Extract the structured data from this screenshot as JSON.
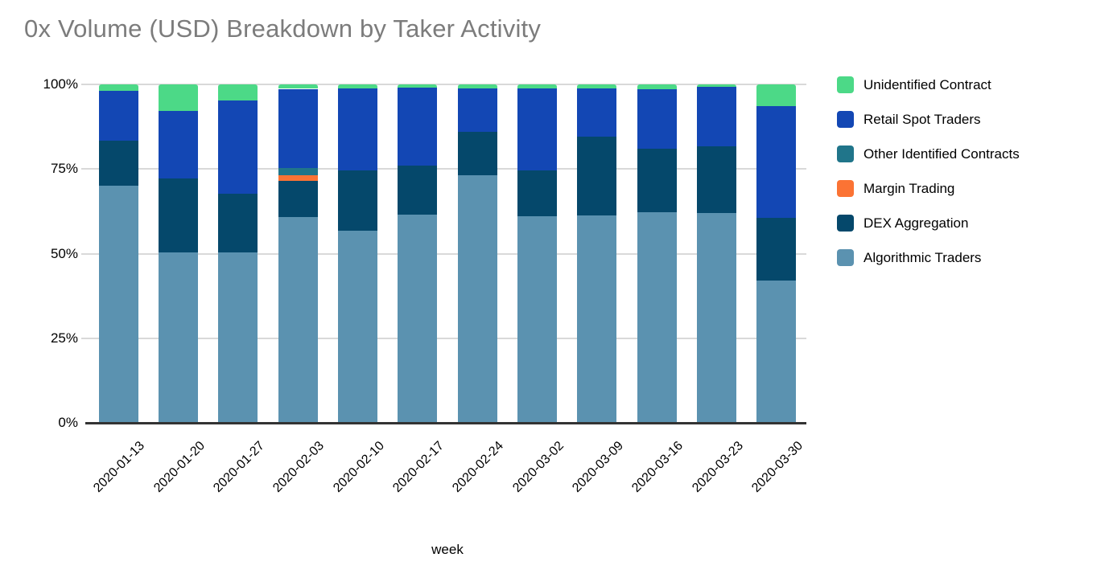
{
  "chart_data": {
    "type": "bar",
    "stacking": "percent",
    "title": "0x Volume (USD) Breakdown by Taker Activity",
    "xlabel": "week",
    "ylabel": "",
    "ylim": [
      0,
      100
    ],
    "y_tick_labels": [
      "0%",
      "25%",
      "50%",
      "75%",
      "100%"
    ],
    "grid": true,
    "legend_position": "right",
    "categories": [
      "2020-01-13",
      "2020-01-20",
      "2020-01-27",
      "2020-02-03",
      "2020-02-10",
      "2020-02-17",
      "2020-02-24",
      "2020-03-02",
      "2020-03-09",
      "2020-03-16",
      "2020-03-23",
      "2020-03-30"
    ],
    "series": [
      {
        "name": "Algorithmic Traders",
        "color": "#5b92b0",
        "values": [
          70.0,
          50.3,
          50.3,
          60.8,
          56.8,
          61.6,
          73.1,
          61.0,
          61.4,
          62.3,
          62.0,
          42.0
        ]
      },
      {
        "name": "DEX Aggregation",
        "color": "#05486b",
        "values": [
          13.4,
          21.8,
          17.5,
          10.6,
          17.8,
          14.3,
          12.8,
          13.7,
          23.2,
          18.7,
          19.8,
          18.6
        ]
      },
      {
        "name": "Margin Trading",
        "color": "#fb7334",
        "values": [
          0,
          0,
          0,
          1.8,
          0,
          0,
          0,
          0,
          0,
          0,
          0,
          0
        ]
      },
      {
        "name": "Other Identified Contracts",
        "color": "#20758a",
        "values": [
          0,
          0,
          0,
          2.0,
          0,
          0,
          0,
          0,
          0,
          0,
          0,
          0
        ]
      },
      {
        "name": "Retail Spot Traders",
        "color": "#1347b4",
        "values": [
          14.7,
          20.0,
          27.5,
          23.5,
          24.3,
          23.1,
          13.0,
          24.0,
          14.1,
          17.5,
          17.5,
          32.9
        ]
      },
      {
        "name": "Unidentified Contract",
        "color": "#4cd987",
        "values": [
          1.9,
          7.9,
          4.7,
          1.3,
          1.1,
          1.0,
          1.1,
          1.3,
          1.3,
          1.5,
          0.7,
          6.5
        ]
      }
    ]
  }
}
